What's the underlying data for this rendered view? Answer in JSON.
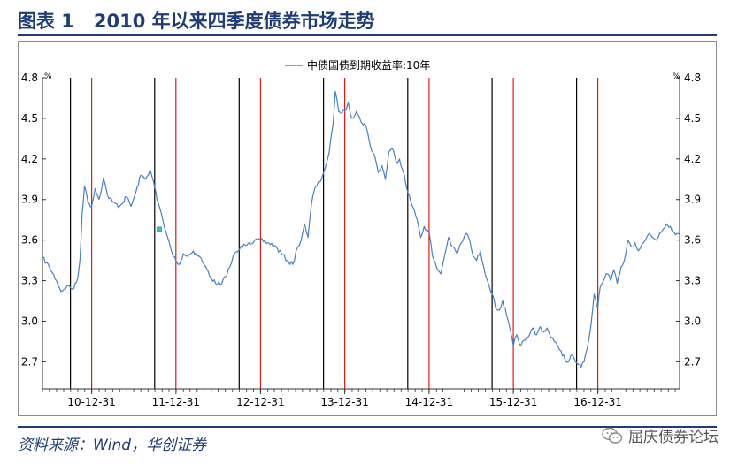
{
  "figure": {
    "label": "图表 1",
    "title": "2010 年以来四季度债券市场走势"
  },
  "source": "资料来源：Wind，华创证券",
  "watermark": {
    "icon": "wechat-icon",
    "text": "屈庆债券论坛"
  },
  "colors": {
    "title": "#1f3c74",
    "series": "#4a7fc1",
    "red_line": "#e0191a",
    "black_line": "#000000",
    "marker": "#2ec4c4"
  },
  "chart_data": {
    "type": "line",
    "title": "",
    "legend": "top-center",
    "grid": false,
    "unit_left": "%",
    "unit_right": "%",
    "ylim": [
      2.5,
      4.8
    ],
    "yticks": [
      2.7,
      3.0,
      3.3,
      3.6,
      3.9,
      4.2,
      4.5,
      4.8
    ],
    "ytick_labels": [
      "2.7",
      "3.0",
      "3.3",
      "3.6",
      "3.9",
      "4.2",
      "4.5",
      "4.8"
    ],
    "xlim": [
      "2010-06-01",
      "2017-12-20"
    ],
    "xticks": [
      "2010-12-31",
      "2011-12-31",
      "2012-12-31",
      "2013-12-31",
      "2014-12-31",
      "2015-12-31",
      "2016-12-31"
    ],
    "xtick_labels": [
      "10-12-31",
      "11-12-31",
      "12-12-31",
      "13-12-31",
      "14-12-31",
      "15-12-31",
      "16-12-31"
    ],
    "series": [
      {
        "name": "中债国债到期收益率:10年",
        "points": [
          [
            "2010-06-01",
            3.47
          ],
          [
            "2010-07-01",
            3.4
          ],
          [
            "2010-08-01",
            3.3
          ],
          [
            "2010-08-20",
            3.22
          ],
          [
            "2010-09-15",
            3.26
          ],
          [
            "2010-10-15",
            3.24
          ],
          [
            "2010-11-01",
            3.32
          ],
          [
            "2010-11-10",
            3.45
          ],
          [
            "2010-11-20",
            3.8
          ],
          [
            "2010-11-30",
            4.0
          ],
          [
            "2010-12-15",
            3.88
          ],
          [
            "2010-12-31",
            3.85
          ],
          [
            "2011-01-15",
            3.98
          ],
          [
            "2011-02-01",
            3.9
          ],
          [
            "2011-02-20",
            4.06
          ],
          [
            "2011-03-10",
            3.93
          ],
          [
            "2011-04-01",
            3.88
          ],
          [
            "2011-05-01",
            3.85
          ],
          [
            "2011-06-01",
            3.92
          ],
          [
            "2011-06-20",
            3.85
          ],
          [
            "2011-07-10",
            3.95
          ],
          [
            "2011-08-01",
            4.08
          ],
          [
            "2011-08-20",
            4.05
          ],
          [
            "2011-09-10",
            4.12
          ],
          [
            "2011-09-25",
            4.03
          ],
          [
            "2011-10-10",
            3.9
          ],
          [
            "2011-10-25",
            3.82
          ],
          [
            "2011-11-10",
            3.7
          ],
          [
            "2011-11-25",
            3.62
          ],
          [
            "2011-12-15",
            3.5
          ],
          [
            "2011-12-31",
            3.45
          ],
          [
            "2012-01-15",
            3.42
          ],
          [
            "2012-02-01",
            3.5
          ],
          [
            "2012-02-20",
            3.48
          ],
          [
            "2012-03-15",
            3.52
          ],
          [
            "2012-04-10",
            3.48
          ],
          [
            "2012-05-01",
            3.42
          ],
          [
            "2012-06-01",
            3.32
          ],
          [
            "2012-06-20",
            3.28
          ],
          [
            "2012-07-15",
            3.27
          ],
          [
            "2012-08-01",
            3.33
          ],
          [
            "2012-08-20",
            3.4
          ],
          [
            "2012-09-10",
            3.5
          ],
          [
            "2012-10-01",
            3.53
          ],
          [
            "2012-10-20",
            3.57
          ],
          [
            "2012-11-10",
            3.58
          ],
          [
            "2012-12-31",
            3.6
          ],
          [
            "2013-02-01",
            3.58
          ],
          [
            "2013-03-01",
            3.56
          ],
          [
            "2013-04-01",
            3.5
          ],
          [
            "2013-05-01",
            3.44
          ],
          [
            "2013-05-20",
            3.42
          ],
          [
            "2013-06-10",
            3.55
          ],
          [
            "2013-06-25",
            3.6
          ],
          [
            "2013-07-10",
            3.72
          ],
          [
            "2013-07-25",
            3.62
          ],
          [
            "2013-08-10",
            3.88
          ],
          [
            "2013-08-25",
            3.99
          ],
          [
            "2013-09-15",
            4.03
          ],
          [
            "2013-10-10",
            4.15
          ],
          [
            "2013-10-25",
            4.25
          ],
          [
            "2013-11-10",
            4.45
          ],
          [
            "2013-11-20",
            4.7
          ],
          [
            "2013-12-05",
            4.55
          ],
          [
            "2013-12-31",
            4.55
          ],
          [
            "2014-01-15",
            4.62
          ],
          [
            "2014-01-31",
            4.5
          ],
          [
            "2014-02-20",
            4.55
          ],
          [
            "2014-03-10",
            4.48
          ],
          [
            "2014-04-01",
            4.45
          ],
          [
            "2014-04-20",
            4.3
          ],
          [
            "2014-05-10",
            4.22
          ],
          [
            "2014-05-25",
            4.1
          ],
          [
            "2014-06-10",
            4.15
          ],
          [
            "2014-06-25",
            4.05
          ],
          [
            "2014-07-10",
            4.25
          ],
          [
            "2014-07-25",
            4.28
          ],
          [
            "2014-08-10",
            4.18
          ],
          [
            "2014-08-25",
            4.2
          ],
          [
            "2014-09-15",
            4.08
          ],
          [
            "2014-10-01",
            3.95
          ],
          [
            "2014-10-20",
            3.85
          ],
          [
            "2014-11-10",
            3.75
          ],
          [
            "2014-11-25",
            3.62
          ],
          [
            "2014-12-10",
            3.7
          ],
          [
            "2014-12-31",
            3.66
          ],
          [
            "2015-01-15",
            3.48
          ],
          [
            "2015-02-01",
            3.4
          ],
          [
            "2015-02-20",
            3.35
          ],
          [
            "2015-03-10",
            3.5
          ],
          [
            "2015-03-25",
            3.62
          ],
          [
            "2015-04-10",
            3.55
          ],
          [
            "2015-05-01",
            3.5
          ],
          [
            "2015-05-20",
            3.58
          ],
          [
            "2015-06-10",
            3.65
          ],
          [
            "2015-06-25",
            3.6
          ],
          [
            "2015-07-10",
            3.48
          ],
          [
            "2015-07-25",
            3.45
          ],
          [
            "2015-08-10",
            3.52
          ],
          [
            "2015-08-25",
            3.4
          ],
          [
            "2015-09-10",
            3.3
          ],
          [
            "2015-10-01",
            3.2
          ],
          [
            "2015-10-15",
            3.1
          ],
          [
            "2015-10-31",
            3.08
          ],
          [
            "2015-11-15",
            3.15
          ],
          [
            "2015-12-01",
            3.05
          ],
          [
            "2015-12-31",
            2.82
          ],
          [
            "2016-01-15",
            2.9
          ],
          [
            "2016-02-01",
            2.82
          ],
          [
            "2016-02-20",
            2.86
          ],
          [
            "2016-03-10",
            2.9
          ],
          [
            "2016-03-25",
            2.95
          ],
          [
            "2016-04-10",
            2.9
          ],
          [
            "2016-04-25",
            2.96
          ],
          [
            "2016-05-10",
            2.92
          ],
          [
            "2016-05-25",
            2.95
          ],
          [
            "2016-06-10",
            2.88
          ],
          [
            "2016-06-25",
            2.85
          ],
          [
            "2016-07-10",
            2.82
          ],
          [
            "2016-07-25",
            2.78
          ],
          [
            "2016-08-10",
            2.72
          ],
          [
            "2016-08-25",
            2.7
          ],
          [
            "2016-09-10",
            2.75
          ],
          [
            "2016-09-25",
            2.7
          ],
          [
            "2016-10-10",
            2.68
          ],
          [
            "2016-10-20",
            2.66
          ],
          [
            "2016-11-01",
            2.7
          ],
          [
            "2016-11-15",
            2.8
          ],
          [
            "2016-11-30",
            2.95
          ],
          [
            "2016-12-15",
            3.2
          ],
          [
            "2016-12-31",
            3.1
          ],
          [
            "2017-01-10",
            3.25
          ],
          [
            "2017-01-25",
            3.3
          ],
          [
            "2017-02-10",
            3.35
          ],
          [
            "2017-02-25",
            3.3
          ],
          [
            "2017-03-10",
            3.38
          ],
          [
            "2017-03-25",
            3.28
          ],
          [
            "2017-04-10",
            3.4
          ],
          [
            "2017-04-25",
            3.45
          ],
          [
            "2017-05-10",
            3.6
          ],
          [
            "2017-05-25",
            3.55
          ],
          [
            "2017-06-10",
            3.58
          ],
          [
            "2017-06-25",
            3.52
          ],
          [
            "2017-07-10",
            3.57
          ],
          [
            "2017-07-25",
            3.6
          ],
          [
            "2017-08-10",
            3.65
          ],
          [
            "2017-08-25",
            3.62
          ],
          [
            "2017-09-10",
            3.6
          ],
          [
            "2017-09-25",
            3.65
          ],
          [
            "2017-10-10",
            3.68
          ],
          [
            "2017-10-25",
            3.72
          ],
          [
            "2017-11-10",
            3.7
          ],
          [
            "2017-11-25",
            3.66
          ],
          [
            "2017-12-10",
            3.65
          ],
          [
            "2017-12-20",
            3.64
          ]
        ]
      }
    ],
    "vertical_lines": [
      {
        "date": "2010-09-30",
        "color": "black"
      },
      {
        "date": "2010-12-31",
        "color": "red"
      },
      {
        "date": "2011-09-30",
        "color": "black"
      },
      {
        "date": "2011-12-31",
        "color": "red"
      },
      {
        "date": "2012-09-30",
        "color": "black"
      },
      {
        "date": "2012-12-31",
        "color": "red"
      },
      {
        "date": "2013-09-30",
        "color": "black"
      },
      {
        "date": "2013-12-31",
        "color": "red"
      },
      {
        "date": "2014-09-30",
        "color": "black"
      },
      {
        "date": "2014-12-31",
        "color": "red"
      },
      {
        "date": "2015-09-30",
        "color": "black"
      },
      {
        "date": "2015-12-31",
        "color": "red"
      },
      {
        "date": "2016-09-30",
        "color": "black"
      },
      {
        "date": "2016-12-31",
        "color": "red"
      }
    ],
    "marker": {
      "date": "2011-10-20",
      "value": 3.68
    }
  }
}
